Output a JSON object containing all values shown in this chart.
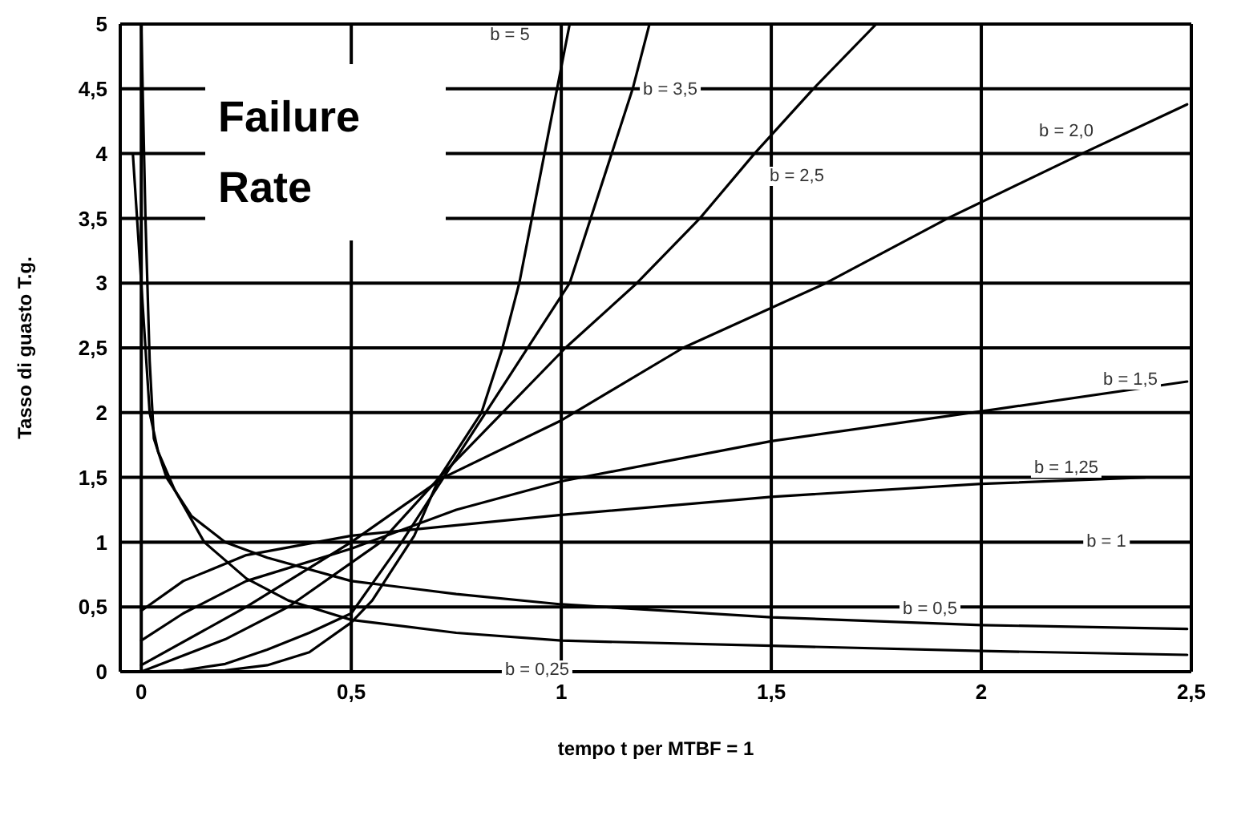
{
  "chart_data": {
    "type": "line",
    "title": "Failure Rate",
    "xlabel": "tempo t per MTBF = 1",
    "ylabel": "Tasso di guasto T.g.",
    "xlim": [
      -0.05,
      2.5
    ],
    "ylim": [
      0,
      5
    ],
    "xticks": [
      0,
      {
        "value": 0.5,
        "label": "0,5"
      },
      1,
      {
        "value": 1.5,
        "label": "1,5"
      },
      2,
      {
        "value": 2.5,
        "label": "2,5"
      }
    ],
    "yticks": [
      0,
      {
        "value": 0.5,
        "label": "0,5"
      },
      1,
      {
        "value": 1.5,
        "label": "1,5"
      },
      2,
      {
        "value": 2.5,
        "label": "2,5"
      },
      3,
      {
        "value": 3.5,
        "label": "3,5"
      },
      4,
      {
        "value": 4.5,
        "label": "4,5"
      },
      5
    ],
    "grid": true,
    "marker": "none",
    "line_style": "solid",
    "series": [
      {
        "color": "#000000",
        "x": [
          0,
          0.2,
          0.3,
          0.4,
          0.5,
          0.55,
          0.6,
          0.65,
          0.71,
          0.81,
          0.86,
          0.9,
          0.93,
          0.96,
          0.99,
          1.02
        ],
        "values": [
          0,
          0.01,
          0.05,
          0.15,
          0.38,
          0.55,
          0.8,
          1.05,
          1.5,
          2,
          2.5,
          3,
          3.5,
          4,
          4.5,
          5
        ]
      },
      {
        "color": "#000000",
        "x": [
          0,
          0.1,
          0.2,
          0.3,
          0.4,
          0.5,
          0.62,
          0.72,
          0.8,
          0.88,
          0.96,
          1.02,
          1.07,
          1.12,
          1.17,
          1.21
        ],
        "values": [
          0,
          0.01,
          0.06,
          0.17,
          0.3,
          0.45,
          1,
          1.5,
          1.9,
          2.3,
          2.7,
          3,
          3.5,
          4,
          4.5,
          5
        ]
      },
      {
        "color": "#000000",
        "x": [
          0,
          0.2,
          0.35,
          0.57,
          0.71,
          0.86,
          1.01,
          1.18,
          1.33,
          1.46,
          1.6,
          1.75
        ],
        "values": [
          0,
          0.25,
          0.5,
          1,
          1.5,
          2,
          2.5,
          3,
          3.5,
          4,
          4.5,
          5
        ]
      },
      {
        "color": "#000000",
        "x": [
          0,
          0.25,
          0.5,
          0.72,
          1,
          1.29,
          1.63,
          1.92,
          2.24,
          2.49
        ],
        "values": [
          0.05,
          0.5,
          1,
          1.5,
          1.94,
          2.5,
          3,
          3.5,
          4,
          4.38
        ]
      },
      {
        "color": "#000000",
        "x": [
          0,
          0.1,
          0.25,
          0.5,
          0.75,
          1,
          1.5,
          2,
          2.49
        ],
        "values": [
          0.24,
          0.45,
          0.7,
          0.95,
          1.25,
          1.47,
          1.78,
          2.01,
          2.24
        ]
      },
      {
        "color": "#000000",
        "x": [
          0,
          0.1,
          0.25,
          0.5,
          1,
          1.5,
          2,
          2.39
        ],
        "values": [
          0.47,
          0.7,
          0.9,
          1.05,
          1.21,
          1.35,
          1.45,
          1.5
        ]
      },
      {
        "color": "#000000",
        "x": [
          0,
          2.5
        ],
        "values": [
          1,
          1
        ]
      },
      {
        "color": "#000000",
        "x": [
          0,
          0.01,
          0.02,
          0.03,
          0.06,
          0.12,
          0.2,
          0.3,
          0.5,
          0.75,
          1,
          1.5,
          2,
          2.49
        ],
        "values": [
          5,
          3.5,
          2.4,
          1.8,
          1.5,
          1.2,
          1,
          0.88,
          0.7,
          0.6,
          0.52,
          0.42,
          0.36,
          0.33
        ]
      },
      {
        "color": "#000000",
        "x": [
          -0.02,
          0,
          0.02,
          0.04,
          0.08,
          0.15,
          0.25,
          0.35,
          0.5,
          0.75,
          1,
          1.5,
          2,
          2.49
        ],
        "values": [
          4,
          3,
          2,
          1.7,
          1.4,
          1,
          0.72,
          0.55,
          0.4,
          0.3,
          0.24,
          0.2,
          0.16,
          0.13
        ]
      }
    ],
    "annotations": [
      "b = 5",
      "b = 3,5",
      "b = 2,0",
      "b = 2,5",
      "b = 1,5",
      "b = 1,25",
      "b = 1",
      "b = 0,5",
      "b = 0,25"
    ]
  }
}
